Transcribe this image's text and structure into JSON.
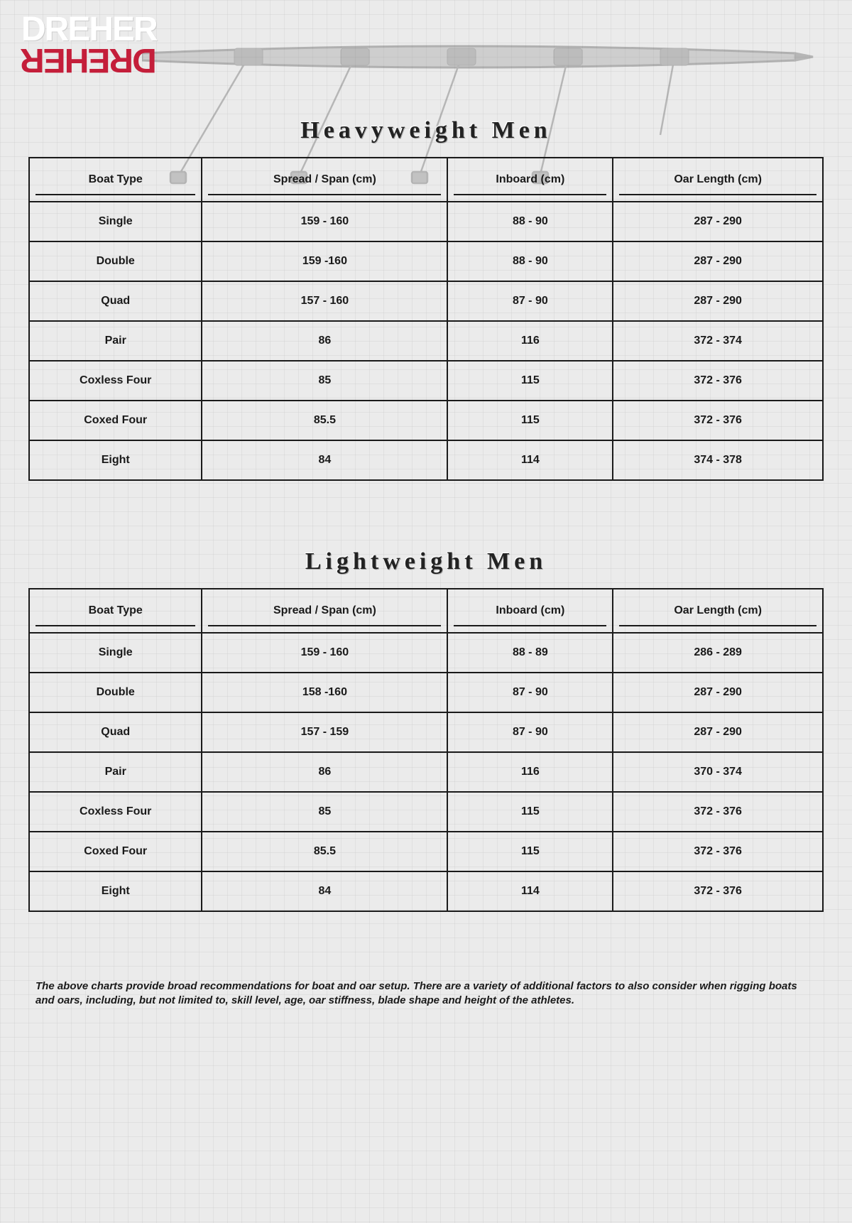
{
  "brand": {
    "name": "DREHER"
  },
  "sections": [
    {
      "title": "Heavyweight Men",
      "columns": [
        "Boat Type",
        "Spread / Span (cm)",
        "Inboard (cm)",
        "Oar Length (cm)"
      ],
      "rows": [
        [
          "Single",
          "159 - 160",
          "88 - 90",
          "287 - 290"
        ],
        [
          "Double",
          "159 -160",
          "88 - 90",
          "287 - 290"
        ],
        [
          "Quad",
          "157 - 160",
          "87 - 90",
          "287 - 290"
        ],
        [
          "Pair",
          "86",
          "116",
          "372 - 374"
        ],
        [
          "Coxless Four",
          "85",
          "115",
          "372 - 376"
        ],
        [
          "Coxed Four",
          "85.5",
          "115",
          "372 - 376"
        ],
        [
          "Eight",
          "84",
          "114",
          "374 - 378"
        ]
      ]
    },
    {
      "title": "Lightweight Men",
      "columns": [
        "Boat Type",
        "Spread / Span (cm)",
        "Inboard (cm)",
        "Oar Length (cm)"
      ],
      "rows": [
        [
          "Single",
          "159 - 160",
          "88 - 89",
          "286 - 289"
        ],
        [
          "Double",
          "158 -160",
          "87 - 90",
          "287 - 290"
        ],
        [
          "Quad",
          "157 - 159",
          "87 - 90",
          "287 - 290"
        ],
        [
          "Pair",
          "86",
          "116",
          "370 - 374"
        ],
        [
          "Coxless Four",
          "85",
          "115",
          "372 - 376"
        ],
        [
          "Coxed Four",
          "85.5",
          "115",
          "372 - 376"
        ],
        [
          "Eight",
          "84",
          "114",
          "372 - 376"
        ]
      ]
    }
  ],
  "footnote": "The above charts provide broad recommendations for boat and oar setup.  There are a variety of additional factors to also consider when rigging boats and oars, including, but not limited to, skill level, age, oar stiffness, blade shape and height of the athletes.",
  "style": {
    "background_color": "#ebebeb",
    "grid_color": "#c8c8c8",
    "border_color": "#1a1a1a",
    "text_color": "#1a1a1a",
    "logo_top_color": "#ffffff",
    "logo_bottom_color": "#c41e3a",
    "title_fontsize": 34,
    "title_letter_spacing": 6,
    "cell_fontsize": 16,
    "header_row_height": 62,
    "data_row_height": 56,
    "footnote_fontsize": 15
  }
}
